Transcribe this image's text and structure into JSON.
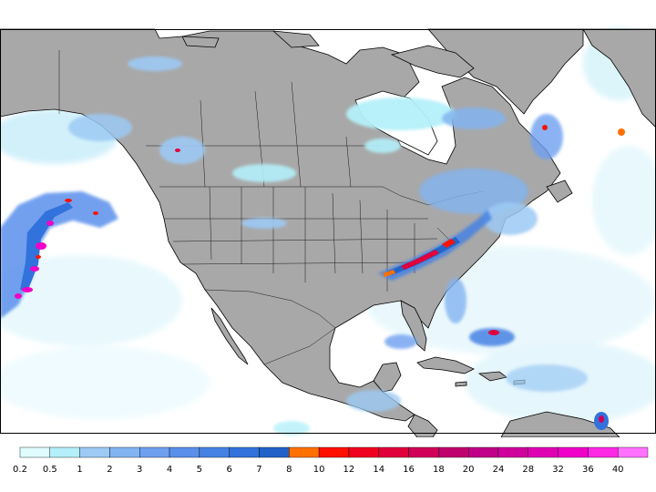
{
  "map": {
    "region": "North America",
    "land_color": "#a8a8a8",
    "ocean_color": "#ffffff",
    "border_color": "#000000"
  },
  "legend": {
    "labels": [
      "0.2",
      "0.5",
      "1",
      "2",
      "3",
      "4",
      "5",
      "6",
      "7",
      "8",
      "10",
      "12",
      "14",
      "16",
      "18",
      "20",
      "24",
      "28",
      "32",
      "36",
      "40"
    ],
    "colors": [
      "#e0fcff",
      "#b4f0fa",
      "#9ccaf4",
      "#82b4f0",
      "#6ea0f0",
      "#5a90ec",
      "#4682e4",
      "#3272dc",
      "#2262c8",
      "#ff7000",
      "#ff1000",
      "#f00020",
      "#e0003c",
      "#d00058",
      "#c0006c",
      "#c00088",
      "#d0009c",
      "#e000b4",
      "#f000c8",
      "#fc28e4",
      "#ff70fc"
    ]
  },
  "precip_zones": [
    {
      "name": "pacific-storm",
      "intensity": "heavy"
    },
    {
      "name": "appalachian-band",
      "intensity": "heavy"
    },
    {
      "name": "hudson-bay",
      "intensity": "light"
    },
    {
      "name": "caribbean",
      "intensity": "moderate"
    }
  ]
}
